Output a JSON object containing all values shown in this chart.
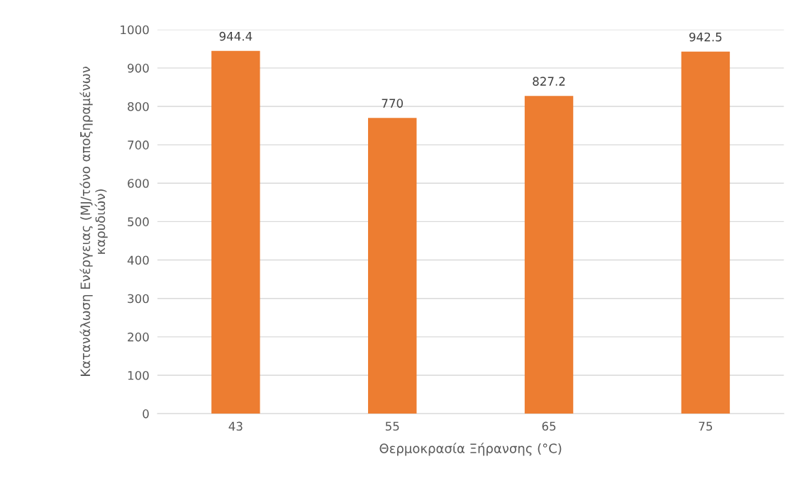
{
  "chart_data": {
    "type": "bar",
    "xlabel": "Θερμοκρασία Ξήρανσης (°C)",
    "ylabel": "Κατανάλωση Ενέργειας (MJ/τόνο αποξηραμένων\nκαρυδιών)",
    "categories": [
      "43",
      "55",
      "65",
      "75"
    ],
    "values": [
      944.4,
      770,
      827.2,
      942.5
    ],
    "color": "#ed7d31",
    "ylim": [
      0,
      1000
    ],
    "yticks": [
      0,
      100,
      200,
      300,
      400,
      500,
      600,
      700,
      800,
      900,
      1000
    ],
    "grid": "y",
    "data_labels": true
  }
}
